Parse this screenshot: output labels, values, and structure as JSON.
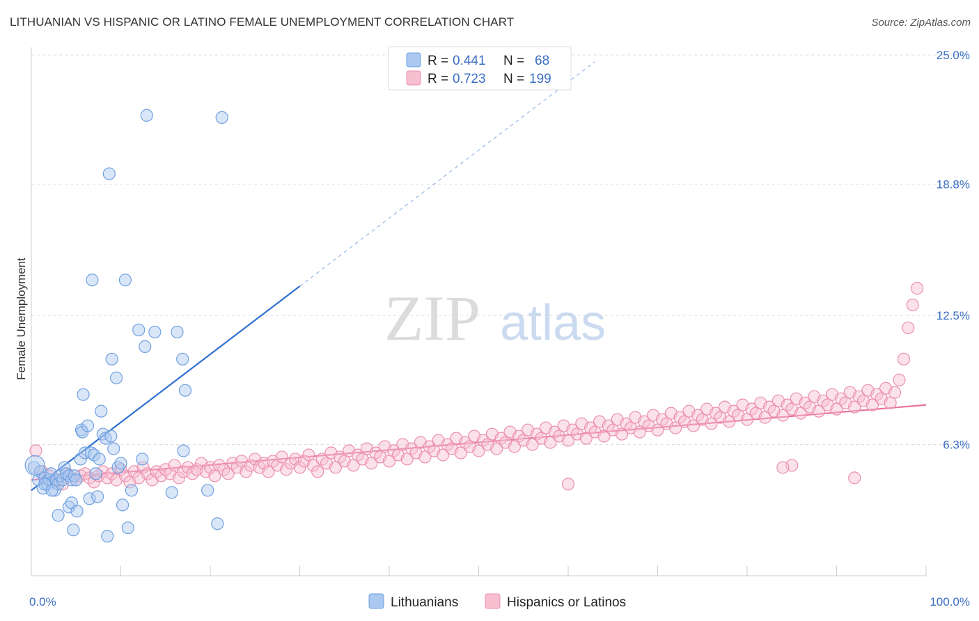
{
  "header": {
    "title": "LITHUANIAN VS HISPANIC OR LATINO FEMALE UNEMPLOYMENT CORRELATION CHART",
    "source": "Source: ZipAtlas.com"
  },
  "watermark": {
    "zip": "ZIP",
    "atlas": "atlas"
  },
  "colors": {
    "blue_fill": "#aac8f0",
    "blue_stroke": "#6fa0e0",
    "blue_line": "#2f6fd0",
    "pink_fill": "#f7bfd0",
    "pink_stroke": "#eb8fae",
    "pink_line": "#e8739c",
    "tick_label": "#3a6fc4",
    "grid": "#dddddd"
  },
  "legend": {
    "rows": [
      {
        "r_label": "R =",
        "r_value": "0.441",
        "n_label": "N =",
        "n_value": "68"
      },
      {
        "r_label": "R =",
        "r_value": "0.723",
        "n_label": "N =",
        "n_value": "199"
      }
    ]
  },
  "bottom_legend": {
    "items": [
      "Lithuanians",
      "Hispanics or Latinos"
    ]
  },
  "chart_data": {
    "type": "scatter",
    "title": "LITHUANIAN VS HISPANIC OR LATINO FEMALE UNEMPLOYMENT CORRELATION CHART",
    "xlabel": "",
    "ylabel": "Female Unemployment",
    "xlim": [
      0,
      100
    ],
    "ylim": [
      0,
      25
    ],
    "x_tick_labels": [
      "0.0%",
      "100.0%"
    ],
    "y_ticks": [
      6.3,
      12.5,
      18.8,
      25.0
    ],
    "y_tick_labels": [
      "6.3%",
      "12.5%",
      "18.8%",
      "25.0%"
    ],
    "grid": "horizontal dashed",
    "legend_position": "top-center",
    "series": [
      {
        "name": "Lithuanians",
        "r": 0.441,
        "n": 68,
        "trend": {
          "x0": 0,
          "y0": 4.1,
          "x1": 30,
          "y1": 13.9,
          "extended_to_x": 63
        },
        "points": [
          [
            0.3,
            5.2
          ],
          [
            0.8,
            4.6
          ],
          [
            1.0,
            5.0
          ],
          [
            1.3,
            4.2
          ],
          [
            1.5,
            4.7
          ],
          [
            1.8,
            4.4
          ],
          [
            2.0,
            4.6
          ],
          [
            2.2,
            4.9
          ],
          [
            2.4,
            4.5
          ],
          [
            2.6,
            4.1
          ],
          [
            2.8,
            4.6
          ],
          [
            3.0,
            4.4
          ],
          [
            3.2,
            4.8
          ],
          [
            3.5,
            4.6
          ],
          [
            3.7,
            5.2
          ],
          [
            3.9,
            4.9
          ],
          [
            4.2,
            4.8
          ],
          [
            4.5,
            4.6
          ],
          [
            4.8,
            4.8
          ],
          [
            5.0,
            4.6
          ],
          [
            1.5,
            4.4
          ],
          [
            2.3,
            4.1
          ],
          [
            3.0,
            2.9
          ],
          [
            4.2,
            3.3
          ],
          [
            4.5,
            3.5
          ],
          [
            4.7,
            2.2
          ],
          [
            5.1,
            3.1
          ],
          [
            5.5,
            5.6
          ],
          [
            5.6,
            7.0
          ],
          [
            5.7,
            6.9
          ],
          [
            5.8,
            8.7
          ],
          [
            6.0,
            5.9
          ],
          [
            6.3,
            7.2
          ],
          [
            6.5,
            3.7
          ],
          [
            6.7,
            5.9
          ],
          [
            6.8,
            14.2
          ],
          [
            7.0,
            5.8
          ],
          [
            7.2,
            4.9
          ],
          [
            7.4,
            3.8
          ],
          [
            7.6,
            5.6
          ],
          [
            7.8,
            7.9
          ],
          [
            8.0,
            6.8
          ],
          [
            8.3,
            6.6
          ],
          [
            8.5,
            1.9
          ],
          [
            8.7,
            19.3
          ],
          [
            8.9,
            6.7
          ],
          [
            9.0,
            10.4
          ],
          [
            9.2,
            6.1
          ],
          [
            9.5,
            9.5
          ],
          [
            9.7,
            5.2
          ],
          [
            10.0,
            5.4
          ],
          [
            10.2,
            3.4
          ],
          [
            10.5,
            14.2
          ],
          [
            10.8,
            2.3
          ],
          [
            11.2,
            4.1
          ],
          [
            12.0,
            11.8
          ],
          [
            12.4,
            5.6
          ],
          [
            12.7,
            11.0
          ],
          [
            12.9,
            22.1
          ],
          [
            13.8,
            11.7
          ],
          [
            15.7,
            4.0
          ],
          [
            16.3,
            11.7
          ],
          [
            16.9,
            10.4
          ],
          [
            17.0,
            6.0
          ],
          [
            17.2,
            8.9
          ],
          [
            19.7,
            4.1
          ],
          [
            20.8,
            2.5
          ],
          [
            21.3,
            22.0
          ]
        ]
      },
      {
        "name": "Hispanics or Latinos",
        "r": 0.723,
        "n": 199,
        "trend": {
          "x0": 0,
          "y0": 4.6,
          "x1": 100,
          "y1": 8.2
        },
        "points": [
          [
            0.5,
            6.0
          ],
          [
            1.2,
            5.0
          ],
          [
            2.0,
            4.8
          ],
          [
            3.0,
            4.6
          ],
          [
            3.5,
            4.4
          ],
          [
            4.0,
            4.9
          ],
          [
            5.0,
            4.6
          ],
          [
            5.5,
            4.8
          ],
          [
            6.0,
            4.9
          ],
          [
            6.5,
            4.7
          ],
          [
            7.0,
            4.5
          ],
          [
            7.5,
            4.8
          ],
          [
            8.0,
            5.0
          ],
          [
            8.5,
            4.7
          ],
          [
            9.0,
            4.9
          ],
          [
            9.5,
            4.6
          ],
          [
            10.0,
            5.1
          ],
          [
            10.5,
            4.8
          ],
          [
            11.0,
            4.5
          ],
          [
            11.5,
            5.0
          ],
          [
            12.0,
            4.7
          ],
          [
            12.5,
            5.2
          ],
          [
            13.0,
            4.9
          ],
          [
            13.5,
            4.6
          ],
          [
            14.0,
            5.0
          ],
          [
            14.5,
            4.8
          ],
          [
            15.0,
            5.1
          ],
          [
            15.5,
            4.9
          ],
          [
            16.0,
            5.3
          ],
          [
            16.5,
            4.7
          ],
          [
            17.0,
            5.0
          ],
          [
            17.5,
            5.2
          ],
          [
            18.0,
            4.9
          ],
          [
            18.5,
            5.1
          ],
          [
            19.0,
            5.4
          ],
          [
            19.5,
            5.0
          ],
          [
            20.0,
            5.2
          ],
          [
            20.5,
            4.8
          ],
          [
            21.0,
            5.3
          ],
          [
            21.5,
            5.1
          ],
          [
            22.0,
            4.9
          ],
          [
            22.5,
            5.4
          ],
          [
            23.0,
            5.2
          ],
          [
            23.5,
            5.5
          ],
          [
            24.0,
            5.0
          ],
          [
            24.5,
            5.3
          ],
          [
            25.0,
            5.6
          ],
          [
            25.5,
            5.2
          ],
          [
            26.0,
            5.4
          ],
          [
            26.5,
            5.0
          ],
          [
            27.0,
            5.5
          ],
          [
            27.5,
            5.3
          ],
          [
            28.0,
            5.7
          ],
          [
            28.5,
            5.1
          ],
          [
            29.0,
            5.4
          ],
          [
            29.5,
            5.6
          ],
          [
            30.0,
            5.2
          ],
          [
            30.5,
            5.5
          ],
          [
            31.0,
            5.8
          ],
          [
            31.5,
            5.3
          ],
          [
            32.0,
            5.0
          ],
          [
            32.5,
            5.6
          ],
          [
            33.0,
            5.4
          ],
          [
            33.5,
            5.9
          ],
          [
            34.0,
            5.2
          ],
          [
            34.5,
            5.7
          ],
          [
            35.0,
            5.5
          ],
          [
            35.5,
            6.0
          ],
          [
            36.0,
            5.3
          ],
          [
            36.5,
            5.8
          ],
          [
            37.0,
            5.6
          ],
          [
            37.5,
            6.1
          ],
          [
            38.0,
            5.4
          ],
          [
            38.5,
            5.9
          ],
          [
            39.0,
            5.7
          ],
          [
            39.5,
            6.2
          ],
          [
            40.0,
            5.5
          ],
          [
            40.5,
            6.0
          ],
          [
            41.0,
            5.8
          ],
          [
            41.5,
            6.3
          ],
          [
            42.0,
            5.6
          ],
          [
            42.5,
            6.1
          ],
          [
            43.0,
            5.9
          ],
          [
            43.5,
            6.4
          ],
          [
            44.0,
            5.7
          ],
          [
            44.5,
            6.2
          ],
          [
            45.0,
            6.0
          ],
          [
            45.5,
            6.5
          ],
          [
            46.0,
            5.8
          ],
          [
            46.5,
            6.3
          ],
          [
            47.0,
            6.1
          ],
          [
            47.5,
            6.6
          ],
          [
            48.0,
            5.9
          ],
          [
            48.5,
            6.4
          ],
          [
            49.0,
            6.2
          ],
          [
            49.5,
            6.7
          ],
          [
            50.0,
            6.0
          ],
          [
            50.5,
            6.5
          ],
          [
            51.0,
            6.3
          ],
          [
            51.5,
            6.8
          ],
          [
            52.0,
            6.1
          ],
          [
            52.5,
            6.6
          ],
          [
            53.0,
            6.4
          ],
          [
            53.5,
            6.9
          ],
          [
            54.0,
            6.2
          ],
          [
            54.5,
            6.7
          ],
          [
            55.0,
            6.5
          ],
          [
            55.5,
            7.0
          ],
          [
            56.0,
            6.3
          ],
          [
            56.5,
            6.8
          ],
          [
            57.0,
            6.6
          ],
          [
            57.5,
            7.1
          ],
          [
            58.0,
            6.4
          ],
          [
            58.5,
            6.9
          ],
          [
            59.0,
            6.7
          ],
          [
            59.5,
            7.2
          ],
          [
            60.0,
            6.5
          ],
          [
            60.5,
            7.0
          ],
          [
            61.0,
            6.8
          ],
          [
            61.5,
            7.3
          ],
          [
            62.0,
            6.6
          ],
          [
            62.5,
            7.1
          ],
          [
            63.0,
            6.9
          ],
          [
            63.5,
            7.4
          ],
          [
            64.0,
            6.7
          ],
          [
            64.5,
            7.2
          ],
          [
            65.0,
            7.0
          ],
          [
            65.5,
            7.5
          ],
          [
            66.0,
            6.8
          ],
          [
            66.5,
            7.3
          ],
          [
            67.0,
            7.1
          ],
          [
            67.5,
            7.6
          ],
          [
            68.0,
            6.9
          ],
          [
            68.5,
            7.4
          ],
          [
            69.0,
            7.2
          ],
          [
            69.5,
            7.7
          ],
          [
            70.0,
            7.0
          ],
          [
            70.5,
            7.5
          ],
          [
            71.0,
            7.3
          ],
          [
            71.5,
            7.8
          ],
          [
            72.0,
            7.1
          ],
          [
            72.5,
            7.6
          ],
          [
            73.0,
            7.4
          ],
          [
            73.5,
            7.9
          ],
          [
            74.0,
            7.2
          ],
          [
            74.5,
            7.7
          ],
          [
            75.0,
            7.5
          ],
          [
            75.5,
            8.0
          ],
          [
            76.0,
            7.3
          ],
          [
            76.5,
            7.8
          ],
          [
            77.0,
            7.6
          ],
          [
            77.5,
            8.1
          ],
          [
            78.0,
            7.4
          ],
          [
            78.5,
            7.9
          ],
          [
            79.0,
            7.7
          ],
          [
            79.5,
            8.2
          ],
          [
            80.0,
            7.5
          ],
          [
            80.5,
            8.0
          ],
          [
            81.0,
            7.8
          ],
          [
            81.5,
            8.3
          ],
          [
            82.0,
            7.6
          ],
          [
            82.5,
            8.1
          ],
          [
            83.0,
            7.9
          ],
          [
            83.5,
            8.4
          ],
          [
            84.0,
            7.7
          ],
          [
            84.5,
            8.2
          ],
          [
            85.0,
            8.0
          ],
          [
            85.5,
            8.5
          ],
          [
            86.0,
            7.8
          ],
          [
            86.5,
            8.3
          ],
          [
            87.0,
            8.1
          ],
          [
            87.5,
            8.6
          ],
          [
            88.0,
            7.9
          ],
          [
            88.5,
            8.4
          ],
          [
            89.0,
            8.2
          ],
          [
            89.5,
            8.7
          ],
          [
            90.0,
            8.0
          ],
          [
            90.5,
            8.5
          ],
          [
            91.0,
            8.3
          ],
          [
            91.5,
            8.8
          ],
          [
            92.0,
            8.1
          ],
          [
            92.5,
            8.6
          ],
          [
            93.0,
            8.4
          ],
          [
            93.5,
            8.9
          ],
          [
            94.0,
            8.2
          ],
          [
            94.5,
            8.7
          ],
          [
            95.0,
            8.5
          ],
          [
            95.5,
            9.0
          ],
          [
            96.0,
            8.3
          ],
          [
            96.5,
            8.8
          ],
          [
            97.0,
            9.4
          ],
          [
            97.5,
            10.4
          ],
          [
            98.0,
            11.9
          ],
          [
            98.5,
            13.0
          ],
          [
            99.0,
            13.8
          ],
          [
            60.0,
            4.4
          ],
          [
            85.0,
            5.3
          ],
          [
            92.0,
            4.7
          ],
          [
            84.0,
            5.2
          ]
        ]
      }
    ]
  }
}
